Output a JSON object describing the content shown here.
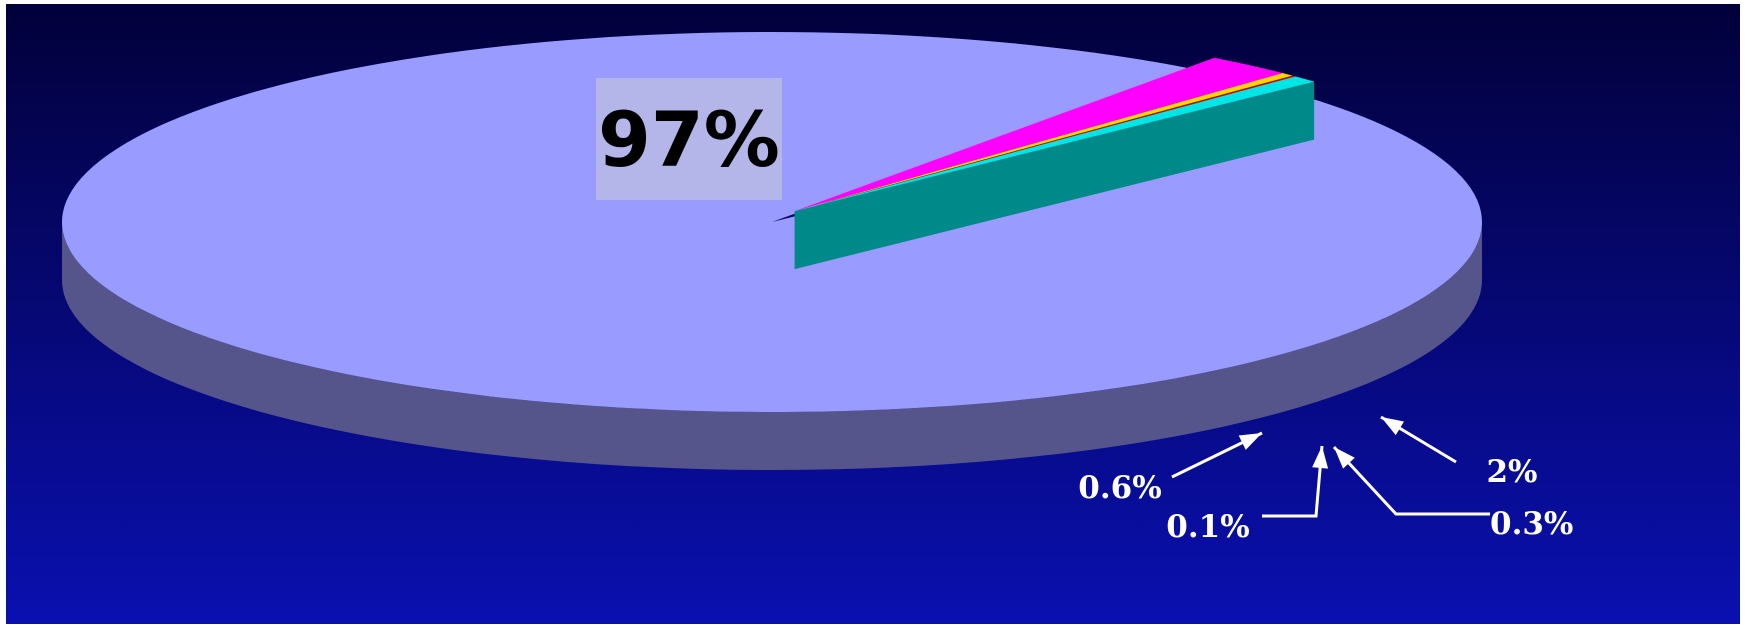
{
  "chart_data": {
    "type": "pie",
    "style": "3d-exploded",
    "slices": [
      {
        "label": "97%",
        "value": 97,
        "color": "#9A9BFF"
      },
      {
        "label": "2%",
        "value": 2,
        "color": "#FF00FF"
      },
      {
        "label": "0.3%",
        "value": 0.3,
        "color": "#FFD700"
      },
      {
        "label": "0.1%",
        "value": 0.1,
        "color": "#CC0000"
      },
      {
        "label": "0.6%",
        "value": 0.6,
        "color": "#00E5E5"
      }
    ],
    "background": {
      "top": "#02003A",
      "bottom": "#0A10B0"
    },
    "legend": "none",
    "grid": false
  }
}
